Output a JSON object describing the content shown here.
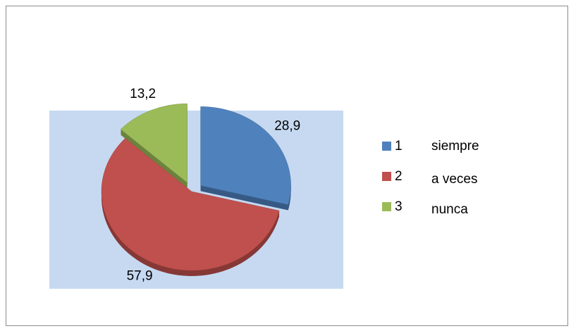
{
  "chart_data": {
    "type": "pie",
    "categories": [
      "1",
      "2",
      "3"
    ],
    "values": [
      28.9,
      57.9,
      13.2
    ],
    "value_labels": [
      "28,9",
      "57,9",
      "13,2"
    ],
    "colors": [
      "#4f81bd",
      "#c0504d",
      "#9bbb59"
    ],
    "annotations": [
      "siempre",
      "a veces",
      "nunca"
    ],
    "legend": "right"
  }
}
